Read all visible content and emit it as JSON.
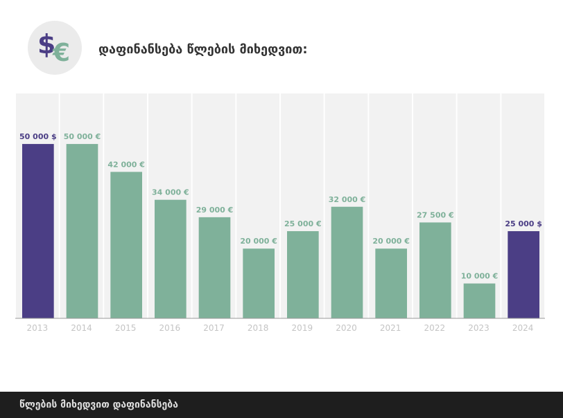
{
  "header": {
    "title": "დაფინანსება წლების მიხედვით:",
    "icon": "dollar-euro-icon"
  },
  "footer": {
    "caption": "წლების მიხედვით დაფინანსება"
  },
  "colors": {
    "usd": "#4b3e85",
    "eur": "#7fb19a",
    "column_bg": "#f2f2f2",
    "label_eur": "#7fb19a",
    "label_usd": "#4b3e85"
  },
  "chart_data": {
    "type": "bar",
    "title": "დაფინანსება წლების მიხედვით:",
    "categories": [
      "2013",
      "2014",
      "2015",
      "2016",
      "2017",
      "2018",
      "2019",
      "2020",
      "2021",
      "2022",
      "2023",
      "2024"
    ],
    "values": [
      50000,
      50000,
      42000,
      34000,
      29000,
      20000,
      25000,
      32000,
      20000,
      27500,
      10000,
      25000
    ],
    "currency": [
      "$",
      "€",
      "€",
      "€",
      "€",
      "€",
      "€",
      "€",
      "€",
      "€",
      "€",
      "$"
    ],
    "labels": [
      "50 000 $",
      "50 000 €",
      "42 000 €",
      "34 000 €",
      "29 000 €",
      "20 000 €",
      "25 000 €",
      "32 000 €",
      "20 000 €",
      "27 500 €",
      "10 000 €",
      "25 000 $"
    ],
    "ylim": [
      0,
      64500
    ],
    "grid": false
  }
}
